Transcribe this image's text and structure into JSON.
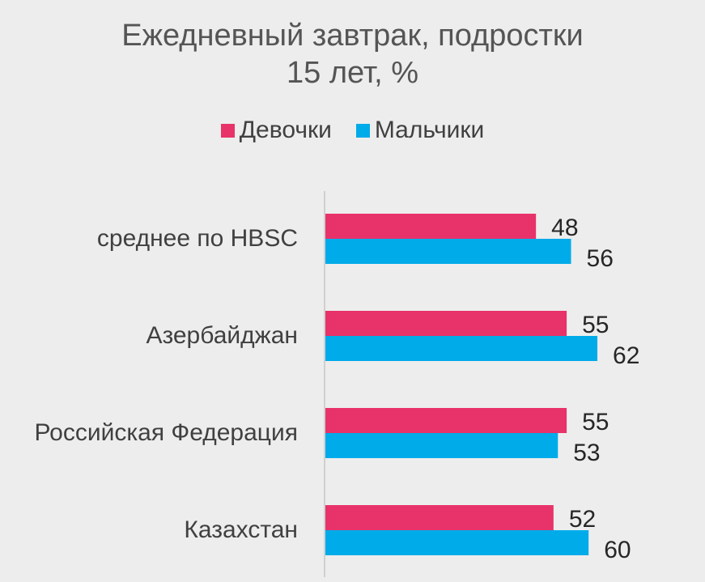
{
  "colors": {
    "girls": "#e8336a",
    "boys": "#00abe9",
    "axis": "#d0d0d0"
  },
  "chart_data": {
    "type": "bar",
    "orientation": "horizontal",
    "title_line1": "Ежедневный завтрак, подростки",
    "title_line2": "15 лет, %",
    "categories": [
      "среднее по HBSC",
      "Азербайджан",
      "Российская Федерация",
      "Казахстан"
    ],
    "series": [
      {
        "name": "Девочки",
        "values": [
          48,
          55,
          55,
          52
        ]
      },
      {
        "name": "Мальчики",
        "values": [
          56,
          62,
          53,
          60
        ]
      }
    ],
    "xlim": [
      0,
      100
    ],
    "legend_position": "top",
    "grid": false
  }
}
